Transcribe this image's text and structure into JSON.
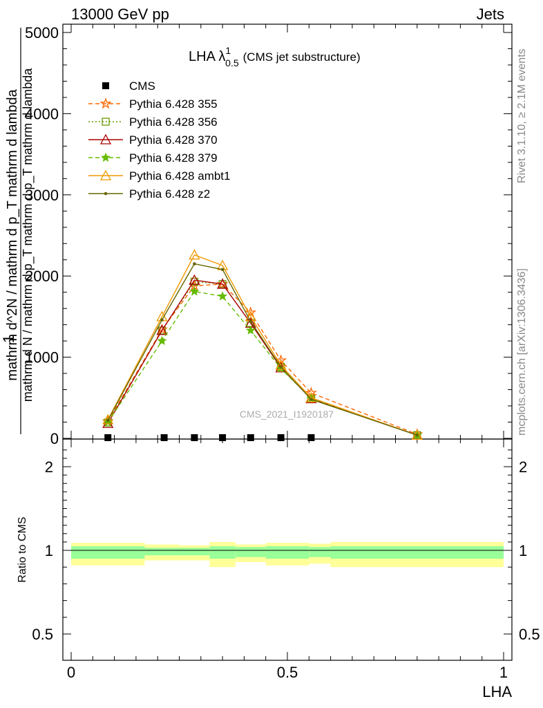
{
  "header": {
    "left": "13000 GeV pp",
    "right": "Jets"
  },
  "side": {
    "rivet": "Rivet 3.1.10, ≥ 2.1M events",
    "mcplots": "mcplots.cern.ch [arXiv:1306.3436]"
  },
  "plot": {
    "title_main": "LHA λ",
    "title_sup": "1",
    "title_sub": "0.5",
    "title_rest": "(CMS jet substructure)",
    "watermark": "CMS_2021_I1920187",
    "ylabel_top": "1",
    "ylabel_num": "mathrm dN / mathrm d p_T",
    "ylabel_main": "mathrm d^2N / mathrm d p_T mathrm d lambda",
    "ylabel_num_display": "mathrm d N / mathrm d p_T",
    "ylabel_main_display": "mathrm d N",
    "ylabel_main_tail": "mathrm d p_T mathrm d lambda",
    "ylabel_denom": "mathrm d N / mathrm d p_T mathrm d p_T mathrm d lambda",
    "xlabel": "LHA",
    "ratio_ylabel": "Ratio to CMS"
  },
  "chart_data": {
    "type": "line",
    "xlabel": "LHA",
    "xlim": [
      0,
      1
    ],
    "main_ylim": [
      0,
      5100
    ],
    "main_yticks": [
      0,
      1000,
      2000,
      3000,
      4000,
      5000
    ],
    "ratio_ylim": [
      0.4,
      2.4
    ],
    "ratio_yticks": [
      0.5,
      1,
      2
    ],
    "xticks": [
      0,
      0.5,
      1
    ],
    "xtick_labels": [
      "0",
      "0.5",
      "1"
    ],
    "ratio_yticklabels": [
      "0.5",
      "1",
      "2"
    ],
    "main_yticklabels": [
      "0",
      "1000",
      "2000",
      "3000",
      "4000",
      "5000"
    ],
    "data": {
      "name": "CMS",
      "x": [
        0.085,
        0.215,
        0.285,
        0.35,
        0.415,
        0.485,
        0.555
      ],
      "y": [
        0,
        0,
        0,
        0,
        0,
        0,
        0
      ]
    },
    "series": [
      {
        "name": "Pythia 6.428 355",
        "color": "#ff6600",
        "dash": "6,4",
        "marker": "star-open",
        "x": [
          0.085,
          0.21,
          0.285,
          0.35,
          0.415,
          0.485,
          0.555,
          0.8
        ],
        "y": [
          210,
          1340,
          1880,
          1900,
          1550,
          960,
          560,
          50
        ]
      },
      {
        "name": "Pythia 6.428 356",
        "color": "#669900",
        "dash": "2,3",
        "marker": "square-open",
        "x": [
          0.085,
          0.21,
          0.285,
          0.35,
          0.415,
          0.485,
          0.555,
          0.8
        ],
        "y": [
          195,
          1330,
          1930,
          1900,
          1420,
          880,
          490,
          40
        ]
      },
      {
        "name": "Pythia 6.428 370",
        "color": "#aa0000",
        "dash": "",
        "marker": "triangle-open",
        "x": [
          0.085,
          0.21,
          0.285,
          0.35,
          0.415,
          0.485,
          0.555,
          0.8
        ],
        "y": [
          185,
          1330,
          1950,
          1900,
          1420,
          870,
          490,
          40
        ]
      },
      {
        "name": "Pythia 6.428 379",
        "color": "#66bb00",
        "dash": "6,4",
        "marker": "star-filled",
        "x": [
          0.085,
          0.21,
          0.285,
          0.35,
          0.415,
          0.485,
          0.555,
          0.8
        ],
        "y": [
          200,
          1200,
          1810,
          1750,
          1330,
          860,
          490,
          40
        ]
      },
      {
        "name": "Pythia 6.428 ambt1",
        "color": "#ee9900",
        "dash": "",
        "marker": "triangle-open",
        "x": [
          0.085,
          0.21,
          0.285,
          0.35,
          0.415,
          0.485,
          0.555,
          0.8
        ],
        "y": [
          230,
          1500,
          2260,
          2130,
          1500,
          900,
          500,
          40
        ]
      },
      {
        "name": "Pythia 6.428 z2",
        "color": "#666600",
        "dash": "",
        "marker": "dot",
        "x": [
          0.085,
          0.21,
          0.285,
          0.35,
          0.415,
          0.485,
          0.555,
          0.8
        ],
        "y": [
          220,
          1460,
          2150,
          2080,
          1440,
          880,
          480,
          40
        ]
      }
    ],
    "ratio_bands": {
      "edges": [
        0,
        0.17,
        0.25,
        0.32,
        0.38,
        0.45,
        0.55,
        0.6,
        1.0
      ],
      "yellow_lo": [
        0.91,
        0.94,
        0.94,
        0.9,
        0.93,
        0.91,
        0.92,
        0.9
      ],
      "yellow_hi": [
        1.09,
        1.07,
        1.06,
        1.1,
        1.07,
        1.09,
        1.08,
        1.1
      ],
      "green_lo": [
        0.95,
        0.97,
        0.97,
        0.95,
        0.96,
        0.95,
        0.96,
        0.95
      ],
      "green_hi": [
        1.05,
        1.03,
        1.03,
        1.05,
        1.04,
        1.05,
        1.04,
        1.05
      ]
    }
  }
}
